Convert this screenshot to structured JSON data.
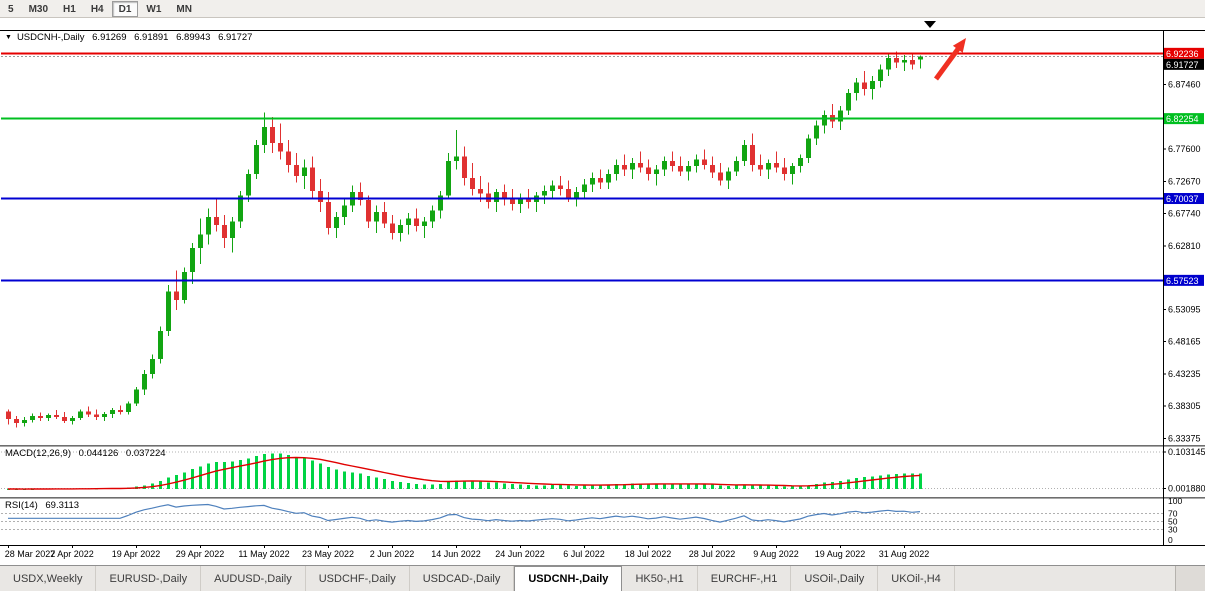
{
  "window": {
    "toolbar": {
      "timeframes": [
        {
          "label": "5",
          "active": false
        },
        {
          "label": "M30",
          "active": false
        },
        {
          "label": "H1",
          "active": false
        },
        {
          "label": "H4",
          "active": false
        },
        {
          "label": "D1",
          "active": true
        },
        {
          "label": "W1",
          "active": false
        },
        {
          "label": "MN",
          "active": false
        }
      ]
    }
  },
  "chart": {
    "title": {
      "icon": "▼",
      "symbol": "USDCNH-,Daily",
      "open": "6.91269",
      "high": "6.91891",
      "low": "6.89943",
      "close": "6.91727"
    },
    "colors": {
      "up": "#12a512",
      "down": "#e03131",
      "arrow": "#f03022"
    },
    "price_axis": {
      "plain_labels": [
        {
          "price": 6.8746,
          "text": "6.87460"
        },
        {
          "price": 6.776,
          "text": "6.77600"
        },
        {
          "price": 6.7267,
          "text": "6.72670"
        },
        {
          "price": 6.6774,
          "text": "6.67740"
        },
        {
          "price": 6.6281,
          "text": "6.62810"
        },
        {
          "price": 6.53095,
          "text": "6.53095"
        },
        {
          "price": 6.48165,
          "text": "6.48165"
        },
        {
          "price": 6.43235,
          "text": "6.43235"
        },
        {
          "price": 6.38305,
          "text": "6.38305"
        },
        {
          "price": 6.33375,
          "text": "6.33375"
        }
      ],
      "special_labels": [
        {
          "price": 6.92236,
          "text": "6.92236",
          "bg": "#e60000",
          "fg": "#ffffff"
        },
        {
          "price": 6.91727,
          "text": "6.91727",
          "bg": "#000000",
          "fg": "#ffffff",
          "stack": true
        },
        {
          "price": 6.82254,
          "text": "6.82254",
          "bg": "#00bf20",
          "fg": "#ffffff"
        },
        {
          "price": 6.70037,
          "text": "6.70037",
          "bg": "#0000cd",
          "fg": "#ffffff"
        },
        {
          "price": 6.57523,
          "text": "6.57523",
          "bg": "#0000cd",
          "fg": "#ffffff"
        }
      ]
    },
    "annotations": {
      "arrow": {
        "shape": "up-right-arrow",
        "color": "#f03022"
      },
      "marker": {
        "shape": "triangle-down",
        "color": "#000000"
      }
    }
  },
  "chart_data": {
    "type": "candlestick",
    "symbol": "USDCNH",
    "timeframe": "Daily",
    "ylim": [
      6.325,
      6.955
    ],
    "hlines": [
      {
        "price": 6.92236,
        "color": "#e60000",
        "width": 2,
        "style": "solid"
      },
      {
        "price": 6.91727,
        "color": "#999999",
        "width": 1,
        "style": "dotted"
      },
      {
        "price": 6.82254,
        "color": "#00bf20",
        "width": 2,
        "style": "solid"
      },
      {
        "price": 6.70037,
        "color": "#0000d2",
        "width": 2,
        "style": "solid"
      },
      {
        "price": 6.57523,
        "color": "#0000d2",
        "width": 2,
        "style": "solid"
      }
    ],
    "x_ticks": [
      {
        "i": 0,
        "label": "28 Mar 2022"
      },
      {
        "i": 8,
        "label": "7 Apr 2022"
      },
      {
        "i": 16,
        "label": "19 Apr 2022"
      },
      {
        "i": 24,
        "label": "29 Apr 2022"
      },
      {
        "i": 32,
        "label": "11 May 2022"
      },
      {
        "i": 40,
        "label": "23 May 2022"
      },
      {
        "i": 48,
        "label": "2 Jun 2022"
      },
      {
        "i": 56,
        "label": "14 Jun 2022"
      },
      {
        "i": 64,
        "label": "24 Jun 2022"
      },
      {
        "i": 72,
        "label": "6 Jul 2022"
      },
      {
        "i": 80,
        "label": "18 Jul 2022"
      },
      {
        "i": 88,
        "label": "28 Jul 2022"
      },
      {
        "i": 96,
        "label": "9 Aug 2022"
      },
      {
        "i": 104,
        "label": "19 Aug 2022"
      },
      {
        "i": 112,
        "label": "31 Aug 2022"
      }
    ],
    "ohlc": [
      [
        6.375,
        6.378,
        6.355,
        6.363
      ],
      [
        6.363,
        6.368,
        6.35,
        6.357
      ],
      [
        6.357,
        6.366,
        6.352,
        6.362
      ],
      [
        6.362,
        6.372,
        6.358,
        6.368
      ],
      [
        6.368,
        6.373,
        6.36,
        6.365
      ],
      [
        6.365,
        6.372,
        6.36,
        6.369
      ],
      [
        6.369,
        6.377,
        6.363,
        6.366
      ],
      [
        6.366,
        6.374,
        6.357,
        6.36
      ],
      [
        6.36,
        6.368,
        6.355,
        6.365
      ],
      [
        6.365,
        6.378,
        6.362,
        6.375
      ],
      [
        6.375,
        6.382,
        6.366,
        6.37
      ],
      [
        6.37,
        6.378,
        6.362,
        6.366
      ],
      [
        6.366,
        6.374,
        6.36,
        6.371
      ],
      [
        6.371,
        6.38,
        6.365,
        6.377
      ],
      [
        6.377,
        6.384,
        6.37,
        6.374
      ],
      [
        6.374,
        6.39,
        6.37,
        6.387
      ],
      [
        6.387,
        6.412,
        6.383,
        6.408
      ],
      [
        6.408,
        6.438,
        6.4,
        6.432
      ],
      [
        6.432,
        6.462,
        6.425,
        6.455
      ],
      [
        6.455,
        6.505,
        6.448,
        6.498
      ],
      [
        6.498,
        6.568,
        6.49,
        6.558
      ],
      [
        6.558,
        6.59,
        6.53,
        6.545
      ],
      [
        6.545,
        6.595,
        6.54,
        6.588
      ],
      [
        6.588,
        6.632,
        6.57,
        6.625
      ],
      [
        6.625,
        6.67,
        6.6,
        6.645
      ],
      [
        6.645,
        6.685,
        6.63,
        6.672
      ],
      [
        6.672,
        6.7,
        6.65,
        6.66
      ],
      [
        6.66,
        6.675,
        6.625,
        6.64
      ],
      [
        6.64,
        6.672,
        6.618,
        6.665
      ],
      [
        6.665,
        6.712,
        6.655,
        6.705
      ],
      [
        6.705,
        6.745,
        6.695,
        6.738
      ],
      [
        6.738,
        6.79,
        6.73,
        6.782
      ],
      [
        6.782,
        6.832,
        6.77,
        6.81
      ],
      [
        6.81,
        6.825,
        6.77,
        6.785
      ],
      [
        6.785,
        6.815,
        6.76,
        6.772
      ],
      [
        6.772,
        6.79,
        6.74,
        6.752
      ],
      [
        6.752,
        6.77,
        6.725,
        6.735
      ],
      [
        6.735,
        6.76,
        6.715,
        6.748
      ],
      [
        6.748,
        6.765,
        6.7,
        6.712
      ],
      [
        6.712,
        6.73,
        6.68,
        6.695
      ],
      [
        6.695,
        6.71,
        6.645,
        6.655
      ],
      [
        6.655,
        6.68,
        6.64,
        6.672
      ],
      [
        6.672,
        6.7,
        6.66,
        6.69
      ],
      [
        6.69,
        6.72,
        6.68,
        6.71
      ],
      [
        6.71,
        6.725,
        6.69,
        6.698
      ],
      [
        6.698,
        6.705,
        6.655,
        6.665
      ],
      [
        6.665,
        6.69,
        6.648,
        6.68
      ],
      [
        6.68,
        6.695,
        6.655,
        6.662
      ],
      [
        6.662,
        6.675,
        6.638,
        6.648
      ],
      [
        6.648,
        6.668,
        6.635,
        6.66
      ],
      [
        6.66,
        6.678,
        6.645,
        6.67
      ],
      [
        6.67,
        6.685,
        6.65,
        6.658
      ],
      [
        6.658,
        6.672,
        6.64,
        6.665
      ],
      [
        6.665,
        6.69,
        6.655,
        6.682
      ],
      [
        6.682,
        6.712,
        6.67,
        6.705
      ],
      [
        6.705,
        6.77,
        6.7,
        6.758
      ],
      [
        6.758,
        6.805,
        6.745,
        6.765
      ],
      [
        6.765,
        6.78,
        6.72,
        6.732
      ],
      [
        6.732,
        6.755,
        6.705,
        6.715
      ],
      [
        6.715,
        6.735,
        6.695,
        6.708
      ],
      [
        6.708,
        6.725,
        6.685,
        6.695
      ],
      [
        6.695,
        6.715,
        6.68,
        6.71
      ],
      [
        6.71,
        6.722,
        6.69,
        6.7
      ],
      [
        6.7,
        6.715,
        6.682,
        6.692
      ],
      [
        6.692,
        6.708,
        6.678,
        6.7
      ],
      [
        6.7,
        6.715,
        6.685,
        6.695
      ],
      [
        6.695,
        6.71,
        6.68,
        6.705
      ],
      [
        6.705,
        6.72,
        6.692,
        6.712
      ],
      [
        6.712,
        6.728,
        6.7,
        6.72
      ],
      [
        6.72,
        6.735,
        6.705,
        6.715
      ],
      [
        6.715,
        6.728,
        6.695,
        6.702
      ],
      [
        6.702,
        6.718,
        6.688,
        6.71
      ],
      [
        6.71,
        6.73,
        6.7,
        6.722
      ],
      [
        6.722,
        6.74,
        6.71,
        6.732
      ],
      [
        6.732,
        6.745,
        6.715,
        6.725
      ],
      [
        6.725,
        6.745,
        6.715,
        6.738
      ],
      [
        6.738,
        6.76,
        6.728,
        6.752
      ],
      [
        6.752,
        6.768,
        6.735,
        6.745
      ],
      [
        6.745,
        6.762,
        6.73,
        6.755
      ],
      [
        6.755,
        6.772,
        6.74,
        6.748
      ],
      [
        6.748,
        6.76,
        6.728,
        6.738
      ],
      [
        6.738,
        6.752,
        6.72,
        6.745
      ],
      [
        6.745,
        6.765,
        6.735,
        6.758
      ],
      [
        6.758,
        6.772,
        6.742,
        6.75
      ],
      [
        6.75,
        6.765,
        6.735,
        6.742
      ],
      [
        6.742,
        6.758,
        6.728,
        6.75
      ],
      [
        6.75,
        6.768,
        6.74,
        6.76
      ],
      [
        6.76,
        6.775,
        6.745,
        6.752
      ],
      [
        6.752,
        6.765,
        6.732,
        6.74
      ],
      [
        6.74,
        6.755,
        6.72,
        6.728
      ],
      [
        6.728,
        6.748,
        6.715,
        6.742
      ],
      [
        6.742,
        6.765,
        6.735,
        6.758
      ],
      [
        6.758,
        6.79,
        6.75,
        6.782
      ],
      [
        6.782,
        6.8,
        6.742,
        6.752
      ],
      [
        6.752,
        6.768,
        6.735,
        6.745
      ],
      [
        6.745,
        6.76,
        6.73,
        6.755
      ],
      [
        6.755,
        6.772,
        6.74,
        6.748
      ],
      [
        6.748,
        6.762,
        6.728,
        6.738
      ],
      [
        6.738,
        6.755,
        6.722,
        6.75
      ],
      [
        6.75,
        6.768,
        6.74,
        6.762
      ],
      [
        6.762,
        6.798,
        6.755,
        6.792
      ],
      [
        6.792,
        6.82,
        6.782,
        6.812
      ],
      [
        6.812,
        6.835,
        6.8,
        6.828
      ],
      [
        6.828,
        6.845,
        6.808,
        6.818
      ],
      [
        6.818,
        6.842,
        6.805,
        6.835
      ],
      [
        6.835,
        6.868,
        6.828,
        6.862
      ],
      [
        6.862,
        6.885,
        6.85,
        6.878
      ],
      [
        6.878,
        6.895,
        6.858,
        6.868
      ],
      [
        6.868,
        6.888,
        6.852,
        6.88
      ],
      [
        6.88,
        6.905,
        6.87,
        6.898
      ],
      [
        6.898,
        6.922,
        6.888,
        6.915
      ],
      [
        6.915,
        6.925,
        6.9,
        6.908
      ],
      [
        6.908,
        6.92,
        6.895,
        6.912
      ],
      [
        6.912,
        6.922,
        6.898,
        6.905
      ],
      [
        6.9127,
        6.9189,
        6.8994,
        6.9173
      ]
    ]
  },
  "macd": {
    "label": "MACD(12,26,9)",
    "value_main": "0.044126",
    "value_signal": "0.037224",
    "params": {
      "fast": 12,
      "slow": 26,
      "signal": 9
    },
    "colors": {
      "histogram": "#00d444",
      "signal": "#e00000"
    },
    "axis_labels": [
      {
        "value": 0.103145,
        "text": "0.103145"
      },
      {
        "value": 0.00188,
        "text": "0.001880"
      }
    ]
  },
  "rsi": {
    "label": "RSI(14)",
    "value": "69.3113",
    "period": 14,
    "levels": [
      70,
      50,
      30
    ],
    "colors": {
      "line": "#4f81bd"
    },
    "axis_labels": [
      {
        "value": 100,
        "text": "100"
      },
      {
        "value": 70,
        "text": "70"
      },
      {
        "value": 50,
        "text": "50"
      },
      {
        "value": 30,
        "text": "30"
      },
      {
        "value": 0,
        "text": "0"
      }
    ]
  },
  "tabs": [
    {
      "label": "USDX,Weekly",
      "active": false
    },
    {
      "label": "EURUSD-,Daily",
      "active": false
    },
    {
      "label": "AUDUSD-,Daily",
      "active": false
    },
    {
      "label": "USDCHF-,Daily",
      "active": false
    },
    {
      "label": "USDCAD-,Daily",
      "active": false
    },
    {
      "label": "USDCNH-,Daily",
      "active": true
    },
    {
      "label": "HK50-,H1",
      "active": false
    },
    {
      "label": "EURCHF-,H1",
      "active": false
    },
    {
      "label": "USOil-,Daily",
      "active": false
    },
    {
      "label": "UKOil-,H4",
      "active": false
    }
  ]
}
